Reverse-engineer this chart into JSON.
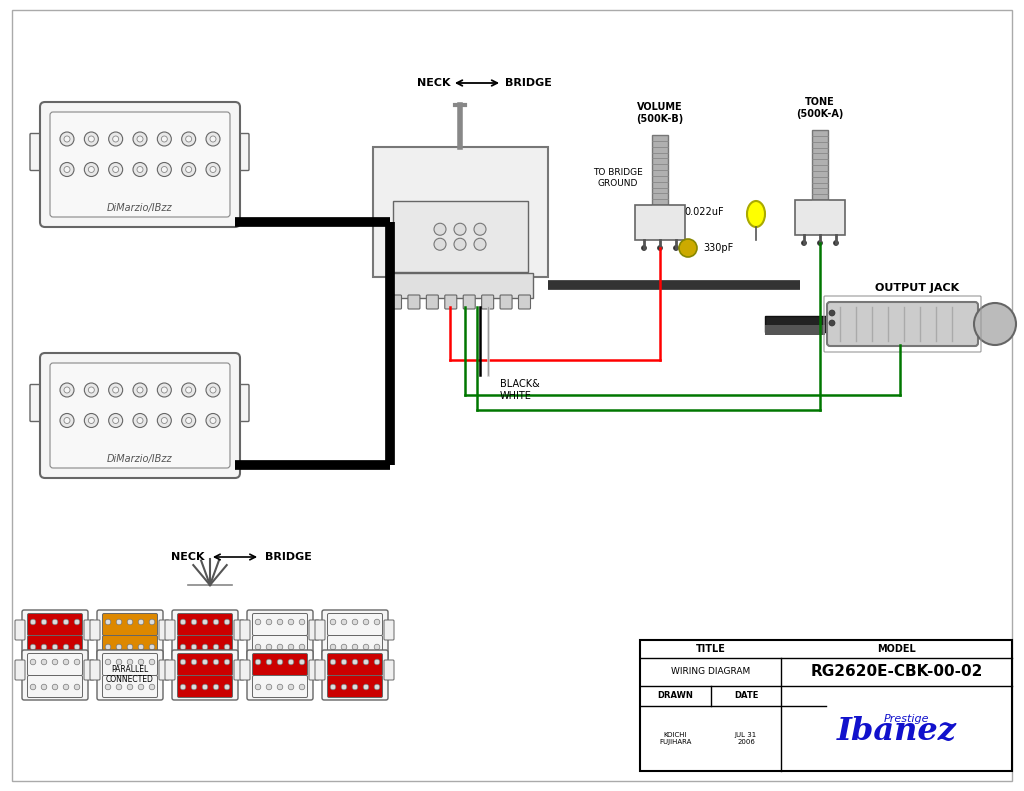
{
  "bg_color": "#ffffff",
  "title": "WIRING DIAGRAM",
  "model": "RG2620E-CBK-00-02",
  "drawn_by": "KOICHI\nFUJIHARA",
  "date": "JUL 31\n2006",
  "volume_label": "VOLUME\n(500K-B)",
  "tone_label": "TONE\n(500K-A)",
  "cap1_label": "0.022uF",
  "cap2_label": "330pF",
  "neck_label": "NECK",
  "bridge_label": "BRIDGE",
  "output_jack_label": "OUTPUT JACK",
  "to_bridge_ground": "TO BRIDGE\nGROUND",
  "black_white_label": "BLACK&\nWHITE",
  "dimarzio_label": "DiMarzio/IBzz",
  "parallel_label": "PARALLEL\nCONNECTED",
  "RED": "#cc0000",
  "ORANGE": "#dd8800",
  "WHITE_FILL": "#f5f5f5",
  "DARK_GRAY": "#444444",
  "MED_GRAY": "#888888",
  "LIGHT_GRAY": "#cccccc",
  "BLACK": "#000000",
  "GREEN": "#007700",
  "YELLOW": "#ffff00"
}
